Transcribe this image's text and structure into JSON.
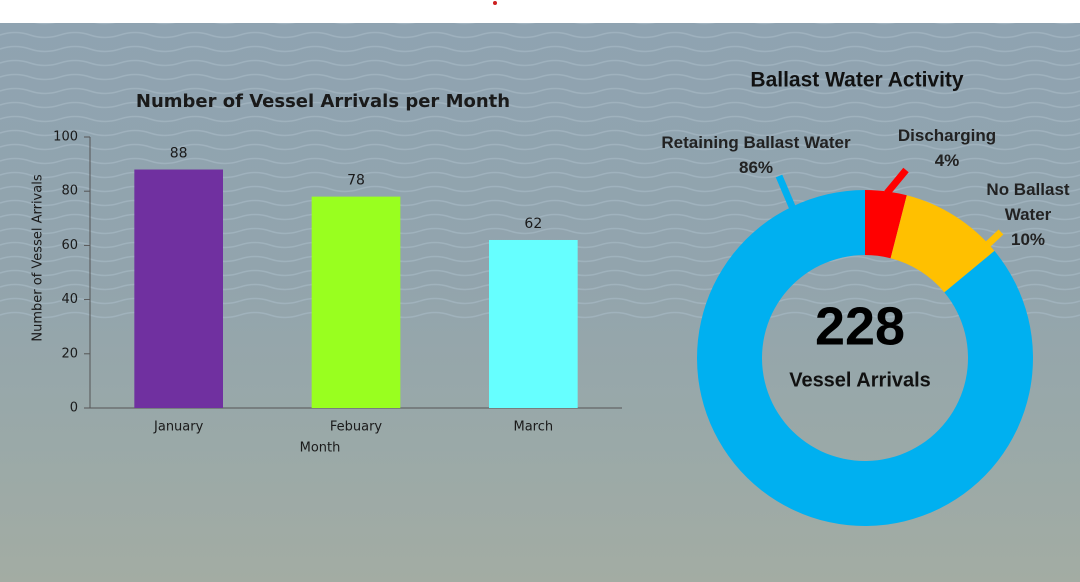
{
  "chart_data": [
    {
      "type": "bar",
      "title": "Number of Vessel Arrivals per Month",
      "x_label": "Month",
      "y_label": "Number of Vessel Arrivals",
      "categories": [
        "January",
        "Febuary",
        "March"
      ],
      "values": [
        88,
        78,
        62
      ],
      "colors": [
        "#7030a0",
        "#99ff1f",
        "#66ffff"
      ],
      "ylim": [
        0,
        100
      ],
      "yticks": [
        0,
        20,
        40,
        60,
        80,
        100
      ],
      "grid": false
    },
    {
      "type": "donut",
      "title": "Ballast Water Activity",
      "categories": [
        "Discharging",
        "No Ballast Water",
        "Retaining Ballast Water"
      ],
      "values": [
        4,
        10,
        86
      ],
      "value_labels": [
        "4%",
        "10%",
        "86%"
      ],
      "colors": [
        "#ff0000",
        "#ffc000",
        "#00b0f0"
      ],
      "center_value": 228,
      "center_label": "Vessel Arrivals"
    }
  ]
}
